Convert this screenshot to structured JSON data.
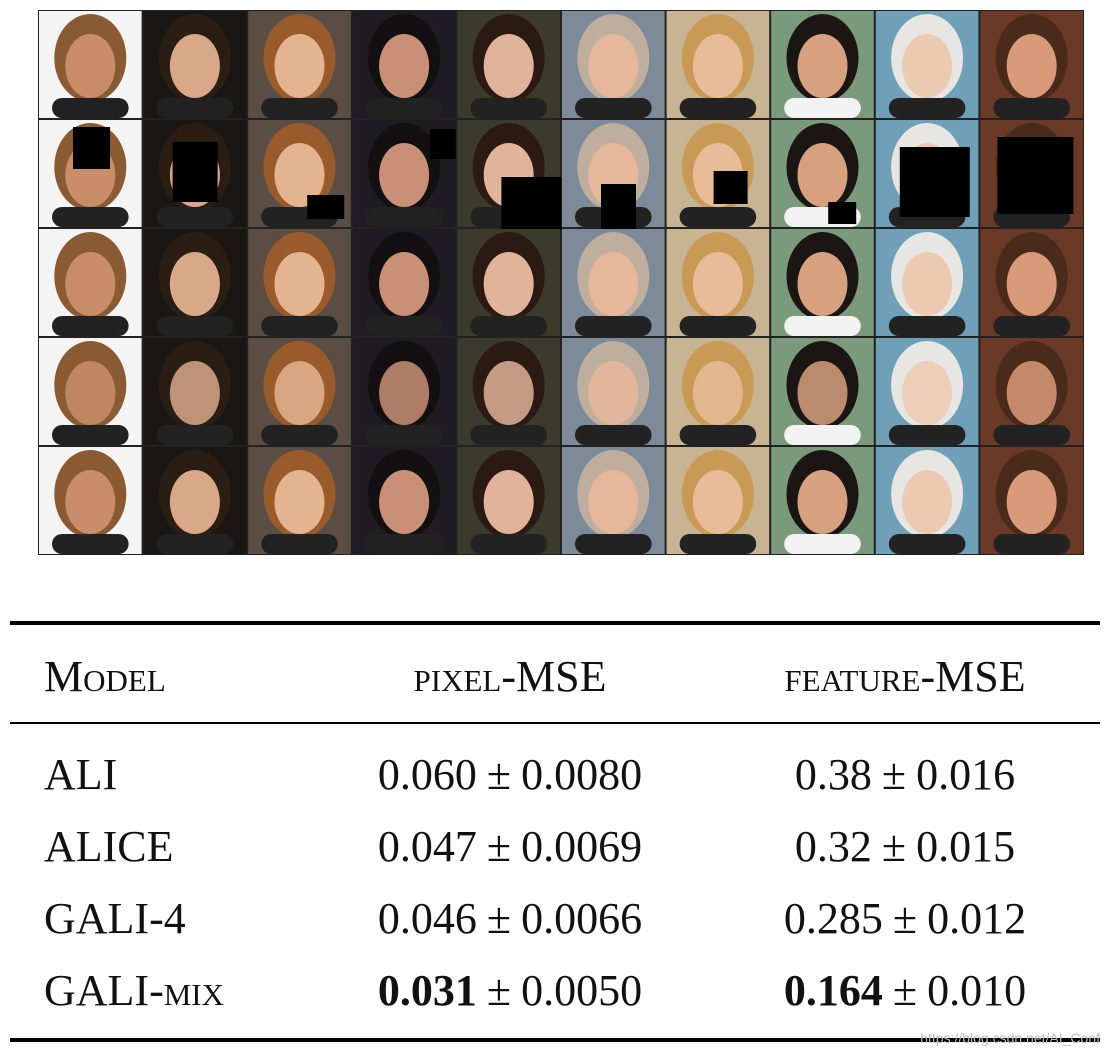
{
  "table": {
    "header": [
      "Model",
      "pixel-MSE",
      "feature-MSE"
    ],
    "rows": [
      {
        "model": "ALI",
        "pixel": {
          "mean": "0.060",
          "pm": "±",
          "std": "0.0080",
          "bold": false
        },
        "feature": {
          "mean": "0.38",
          "pm": "±",
          "std": "0.016",
          "bold": false
        }
      },
      {
        "model": "ALICE",
        "pixel": {
          "mean": "0.047",
          "pm": "±",
          "std": "0.0069",
          "bold": false
        },
        "feature": {
          "mean": "0.32",
          "pm": "±",
          "std": "0.015",
          "bold": false
        }
      },
      {
        "model": "GALI-4",
        "pixel": {
          "mean": "0.046",
          "pm": "±",
          "std": "0.0066",
          "bold": false
        },
        "feature": {
          "mean": "0.285",
          "pm": "±",
          "std": "0.012",
          "bold": false
        }
      },
      {
        "model": "GALI-mix",
        "pixel": {
          "mean": "0.031",
          "pm": "±",
          "std": "0.0050",
          "bold": true
        },
        "feature": {
          "mean": "0.164",
          "pm": "±",
          "std": "0.010",
          "bold": true
        }
      }
    ]
  },
  "watermark": "https://blog.csdn.net/AI_Conf"
}
